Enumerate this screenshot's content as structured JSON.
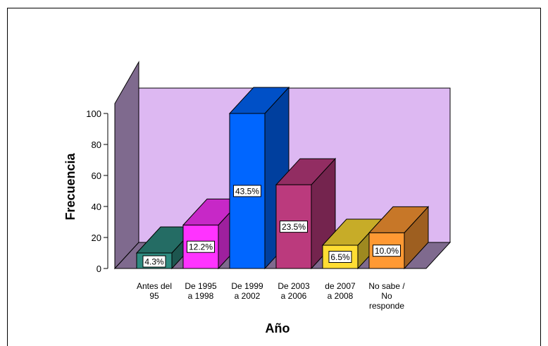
{
  "chart_data": {
    "type": "bar",
    "style": "3d",
    "categories": [
      [
        "Antes del",
        "95"
      ],
      [
        "De 1995",
        "a 1998"
      ],
      [
        "De 1999",
        "a 2002"
      ],
      [
        "De 2003",
        "a 2006"
      ],
      [
        "de 2007",
        "a 2008"
      ],
      [
        "No sabe /",
        "No",
        "responde"
      ]
    ],
    "values": [
      10,
      28,
      100,
      54,
      15,
      23
    ],
    "data_labels": [
      "4.3%",
      "12.2%",
      "43.5%",
      "23.5%",
      "6.5%",
      "10.0%"
    ],
    "colors": [
      "#2e8b80",
      "#ff33ff",
      "#0066ff",
      "#bb3a7d",
      "#ffdd33",
      "#ff9933"
    ],
    "xlabel": "Año",
    "ylabel": "Frecuencia",
    "ylim": [
      0,
      100
    ],
    "yticks": [
      0,
      20,
      40,
      60,
      80,
      100
    ],
    "wall_color": "#ddb8f2",
    "side_wall_color": "#7f6a8e",
    "grid": false,
    "legend": "none"
  }
}
